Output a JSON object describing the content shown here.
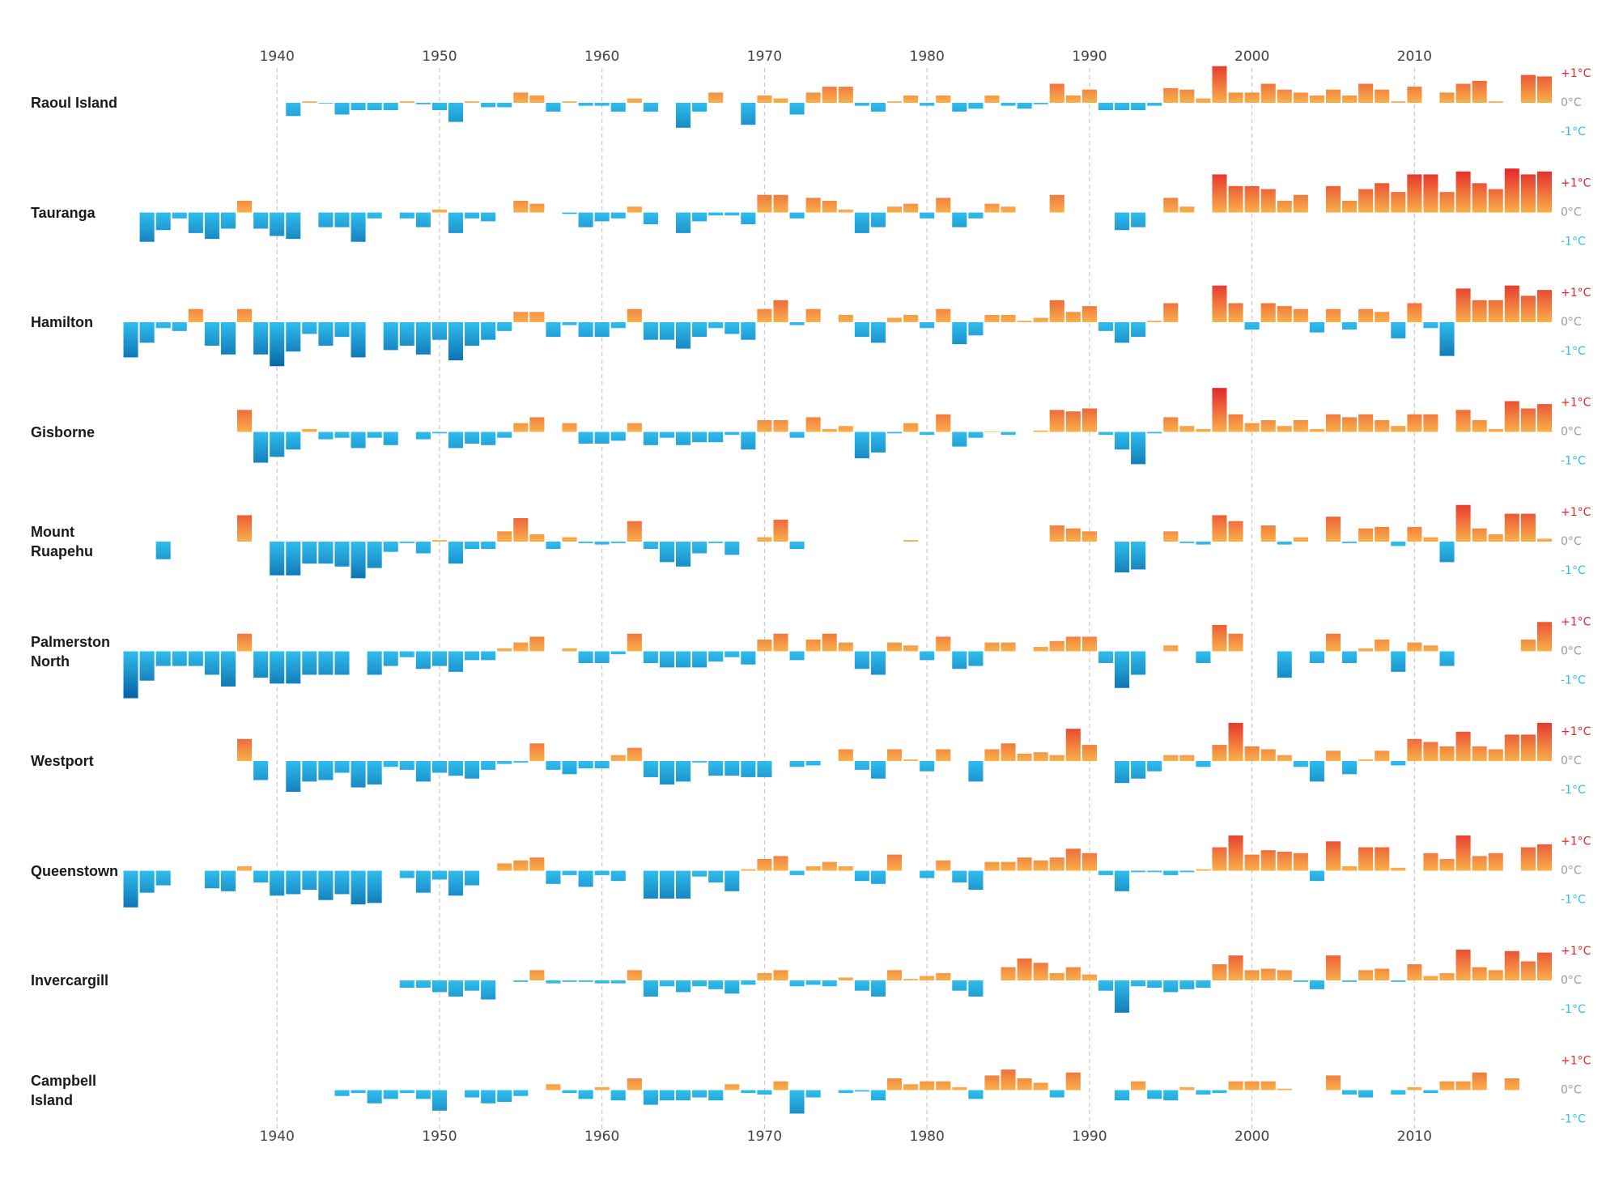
{
  "chart_data": {
    "type": "bar",
    "x": [
      1931,
      1932,
      1933,
      1934,
      1935,
      1936,
      1937,
      1938,
      1939,
      1940,
      1941,
      1942,
      1943,
      1944,
      1945,
      1946,
      1947,
      1948,
      1949,
      1950,
      1951,
      1952,
      1953,
      1954,
      1955,
      1956,
      1957,
      1958,
      1959,
      1960,
      1961,
      1962,
      1963,
      1964,
      1965,
      1966,
      1967,
      1968,
      1969,
      1970,
      1971,
      1972,
      1973,
      1974,
      1975,
      1976,
      1977,
      1978,
      1979,
      1980,
      1981,
      1982,
      1983,
      1984,
      1985,
      1986,
      1987,
      1988,
      1989,
      1990,
      1991,
      1992,
      1993,
      1994,
      1995,
      1996,
      1997,
      1998,
      1999,
      2000,
      2001,
      2002,
      2003,
      2004,
      2005,
      2006,
      2007,
      2008,
      2009,
      2010,
      2011,
      2012,
      2013,
      2014,
      2015,
      2016,
      2017,
      2018
    ],
    "xlim": [
      1930.5,
      2018.5
    ],
    "xticks": [
      1940,
      1950,
      1960,
      1970,
      1980,
      1990,
      2000,
      2010
    ],
    "ylim": [
      -1.85,
      1.85
    ],
    "yticks": [
      {
        "value": 1,
        "label": "+1°C"
      },
      {
        "value": 0,
        "label": "0°C"
      },
      {
        "value": -1,
        "label": "-1°C"
      }
    ],
    "grid": true,
    "colors": {
      "positive": [
        "#f9b04a",
        "#e4262a"
      ],
      "negative": [
        "#2fbdee",
        "#0867a8"
      ]
    },
    "series": [
      {
        "name": "Raoul Island",
        "values": [
          null,
          null,
          null,
          null,
          null,
          null,
          null,
          null,
          null,
          null,
          -0.45,
          0.05,
          -0.02,
          -0.4,
          -0.25,
          -0.25,
          -0.25,
          0.05,
          -0.05,
          -0.25,
          -0.65,
          0.05,
          -0.15,
          -0.15,
          0.35,
          0.25,
          -0.3,
          0.05,
          -0.1,
          -0.1,
          -0.3,
          0.15,
          -0.3,
          null,
          -0.85,
          -0.3,
          0.35,
          null,
          -0.75,
          0.25,
          0.15,
          -0.4,
          0.35,
          0.55,
          0.55,
          -0.1,
          -0.3,
          0.05,
          0.25,
          -0.1,
          0.25,
          -0.3,
          -0.2,
          0.25,
          -0.1,
          -0.2,
          -0.05,
          0.65,
          0.25,
          0.45,
          -0.25,
          -0.25,
          -0.25,
          -0.1,
          0.5,
          0.45,
          0.15,
          1.25,
          0.35,
          0.35,
          0.65,
          0.45,
          0.35,
          0.25,
          0.45,
          0.25,
          0.65,
          0.45,
          0.05,
          0.55,
          null,
          0.35,
          0.65,
          0.75,
          0.05,
          null,
          0.95,
          0.9
        ]
      },
      {
        "name": "Tauranga",
        "values": [
          null,
          -1.0,
          -0.6,
          -0.2,
          -0.7,
          -0.9,
          -0.55,
          0.4,
          -0.55,
          -0.8,
          -0.9,
          null,
          -0.5,
          -0.5,
          -1.0,
          -0.2,
          null,
          -0.2,
          -0.5,
          0.1,
          -0.7,
          -0.2,
          -0.3,
          null,
          0.4,
          0.3,
          null,
          -0.05,
          -0.5,
          -0.3,
          -0.2,
          0.2,
          -0.4,
          null,
          -0.7,
          -0.3,
          -0.1,
          -0.1,
          -0.4,
          0.6,
          0.6,
          -0.2,
          0.5,
          0.4,
          0.1,
          -0.7,
          -0.5,
          0.2,
          0.3,
          -0.2,
          0.5,
          -0.5,
          -0.2,
          0.3,
          0.2,
          null,
          null,
          0.6,
          null,
          null,
          null,
          -0.6,
          -0.5,
          null,
          0.5,
          0.2,
          null,
          1.3,
          0.9,
          0.9,
          0.8,
          0.4,
          0.6,
          null,
          0.9,
          0.4,
          0.8,
          1.0,
          0.7,
          1.3,
          1.3,
          0.7,
          1.4,
          1.0,
          0.8,
          1.5,
          1.3,
          1.4
        ]
      },
      {
        "name": "Hamilton",
        "values": [
          -1.2,
          -0.7,
          -0.2,
          -0.3,
          0.45,
          -0.8,
          -1.1,
          0.45,
          -1.1,
          -1.5,
          -1.0,
          -0.4,
          -0.8,
          -0.5,
          -1.2,
          null,
          -0.95,
          -0.8,
          -1.1,
          -0.6,
          -1.3,
          -0.8,
          -0.6,
          -0.3,
          0.35,
          0.35,
          -0.5,
          -0.1,
          -0.5,
          -0.5,
          -0.2,
          0.45,
          -0.6,
          -0.6,
          -0.9,
          -0.5,
          -0.2,
          -0.4,
          -0.6,
          0.45,
          0.75,
          -0.1,
          0.45,
          null,
          0.25,
          -0.5,
          -0.7,
          0.15,
          0.25,
          -0.2,
          0.45,
          -0.75,
          -0.45,
          0.25,
          0.25,
          0.05,
          0.15,
          0.75,
          0.35,
          0.55,
          -0.3,
          -0.7,
          -0.5,
          0.05,
          0.65,
          null,
          null,
          1.25,
          0.65,
          -0.25,
          0.65,
          0.55,
          0.45,
          -0.35,
          0.45,
          -0.25,
          0.45,
          0.35,
          -0.55,
          0.65,
          -0.2,
          -1.15,
          1.15,
          0.75,
          0.75,
          1.25,
          0.9,
          1.1
        ]
      },
      {
        "name": "Gisborne",
        "values": [
          null,
          null,
          null,
          null,
          null,
          null,
          null,
          0.75,
          -1.05,
          -0.85,
          -0.6,
          0.1,
          -0.25,
          -0.2,
          -0.55,
          -0.2,
          -0.45,
          null,
          -0.25,
          -0.05,
          -0.55,
          -0.4,
          -0.45,
          -0.2,
          0.3,
          0.5,
          null,
          0.3,
          -0.4,
          -0.4,
          -0.3,
          0.3,
          -0.45,
          -0.2,
          -0.45,
          -0.35,
          -0.35,
          -0.1,
          -0.6,
          0.4,
          0.4,
          -0.2,
          0.5,
          0.1,
          0.2,
          -0.9,
          -0.7,
          -0.05,
          0.3,
          -0.1,
          0.6,
          -0.5,
          -0.2,
          0.02,
          -0.1,
          null,
          0.05,
          0.75,
          0.7,
          0.8,
          -0.1,
          -0.6,
          -1.1,
          -0.05,
          0.5,
          0.2,
          0.1,
          1.5,
          0.6,
          0.3,
          0.4,
          0.2,
          0.4,
          0.1,
          0.6,
          0.5,
          0.6,
          0.4,
          0.2,
          0.6,
          0.6,
          null,
          0.75,
          0.4,
          0.1,
          1.05,
          0.8,
          0.95
        ]
      },
      {
        "name": "Mount Ruapehu",
        "values": [
          null,
          null,
          -0.6,
          null,
          null,
          null,
          null,
          0.9,
          null,
          -1.15,
          -1.15,
          -0.75,
          -0.75,
          -0.85,
          -1.25,
          -0.9,
          -0.35,
          -0.05,
          -0.4,
          0.05,
          -0.75,
          -0.25,
          -0.25,
          0.35,
          0.8,
          0.25,
          -0.25,
          0.15,
          -0.05,
          -0.1,
          -0.05,
          0.7,
          -0.25,
          -0.7,
          -0.85,
          -0.4,
          -0.05,
          -0.45,
          null,
          0.15,
          0.75,
          -0.25,
          null,
          null,
          null,
          null,
          null,
          null,
          0.05,
          null,
          null,
          null,
          null,
          null,
          null,
          null,
          null,
          0.55,
          0.45,
          0.35,
          null,
          -1.05,
          -0.95,
          null,
          0.35,
          -0.05,
          -0.1,
          0.9,
          0.7,
          null,
          0.55,
          -0.1,
          0.15,
          null,
          0.85,
          -0.05,
          0.45,
          0.5,
          -0.15,
          0.5,
          0.15,
          -0.7,
          1.25,
          0.45,
          0.25,
          0.95,
          0.95,
          0.1
        ]
      },
      {
        "name": "Palmerston North",
        "values": [
          -1.6,
          -1.0,
          -0.5,
          -0.5,
          -0.5,
          -0.8,
          -1.2,
          0.6,
          -0.9,
          -1.1,
          -1.1,
          -0.8,
          -0.8,
          -0.8,
          null,
          -0.8,
          -0.5,
          -0.2,
          -0.6,
          -0.5,
          -0.7,
          -0.3,
          -0.3,
          0.1,
          0.3,
          0.5,
          null,
          0.1,
          -0.4,
          -0.4,
          -0.1,
          0.6,
          -0.4,
          -0.55,
          -0.55,
          -0.55,
          -0.35,
          -0.2,
          -0.45,
          0.4,
          0.6,
          -0.3,
          0.4,
          0.6,
          0.3,
          -0.6,
          -0.8,
          0.3,
          0.2,
          -0.3,
          0.5,
          -0.6,
          -0.5,
          0.3,
          0.3,
          null,
          0.15,
          0.35,
          0.5,
          0.5,
          -0.4,
          -1.25,
          -0.8,
          null,
          0.2,
          null,
          -0.4,
          0.9,
          0.6,
          null,
          null,
          -0.9,
          null,
          -0.4,
          0.6,
          -0.4,
          0.1,
          0.4,
          -0.7,
          0.3,
          0.2,
          -0.5,
          null,
          null,
          null,
          null,
          0.4,
          1.0
        ]
      },
      {
        "name": "Westport",
        "values": [
          null,
          null,
          null,
          null,
          null,
          null,
          null,
          0.75,
          -0.65,
          null,
          -1.05,
          -0.7,
          -0.65,
          -0.4,
          -0.9,
          -0.8,
          -0.2,
          -0.3,
          -0.7,
          -0.4,
          -0.5,
          -0.6,
          -0.3,
          -0.1,
          -0.05,
          0.6,
          -0.3,
          -0.45,
          -0.25,
          -0.25,
          0.2,
          0.45,
          -0.55,
          -0.8,
          -0.7,
          -0.05,
          -0.5,
          -0.5,
          -0.55,
          -0.55,
          null,
          -0.2,
          -0.15,
          null,
          0.4,
          -0.3,
          -0.6,
          0.4,
          0.05,
          -0.35,
          0.4,
          null,
          -0.7,
          0.4,
          0.6,
          0.25,
          0.3,
          0.2,
          1.1,
          0.55,
          null,
          -0.75,
          -0.6,
          -0.35,
          0.2,
          0.2,
          -0.2,
          0.55,
          1.3,
          0.5,
          0.4,
          0.2,
          -0.2,
          -0.7,
          0.35,
          -0.45,
          0.05,
          0.35,
          -0.15,
          0.75,
          0.65,
          0.5,
          1.0,
          0.5,
          0.4,
          0.9,
          0.9,
          1.3
        ]
      },
      {
        "name": "Queenstown",
        "values": [
          -1.25,
          -0.75,
          -0.5,
          null,
          null,
          -0.6,
          -0.7,
          0.15,
          -0.4,
          -0.85,
          -0.8,
          -0.65,
          -1.0,
          -0.8,
          -1.15,
          -1.1,
          null,
          -0.25,
          -0.75,
          -0.3,
          -0.85,
          -0.5,
          null,
          0.25,
          0.35,
          0.45,
          -0.45,
          -0.15,
          -0.55,
          -0.15,
          -0.35,
          null,
          -0.95,
          -0.95,
          -0.95,
          -0.2,
          -0.4,
          -0.7,
          0.05,
          0.4,
          0.5,
          -0.15,
          0.15,
          0.3,
          0.15,
          -0.35,
          -0.45,
          0.55,
          null,
          -0.25,
          0.35,
          -0.4,
          -0.65,
          0.3,
          0.3,
          0.45,
          0.35,
          0.45,
          0.75,
          0.6,
          -0.15,
          -0.7,
          -0.05,
          -0.05,
          -0.15,
          -0.05,
          0.05,
          0.8,
          1.2,
          0.55,
          0.7,
          0.65,
          0.6,
          -0.35,
          1.0,
          0.15,
          0.8,
          0.8,
          0.1,
          null,
          0.6,
          0.4,
          1.2,
          0.5,
          0.6,
          null,
          0.8,
          0.9
        ]
      },
      {
        "name": "Invercargill",
        "values": [
          null,
          null,
          null,
          null,
          null,
          null,
          null,
          null,
          null,
          null,
          null,
          null,
          null,
          null,
          null,
          null,
          null,
          -0.25,
          -0.25,
          -0.4,
          -0.55,
          -0.35,
          -0.65,
          null,
          -0.05,
          0.35,
          -0.1,
          -0.05,
          -0.05,
          -0.1,
          -0.1,
          0.35,
          -0.55,
          -0.2,
          -0.4,
          -0.2,
          -0.3,
          -0.45,
          -0.15,
          0.25,
          0.35,
          -0.2,
          -0.15,
          -0.2,
          0.1,
          -0.35,
          -0.55,
          0.35,
          0.05,
          0.15,
          0.25,
          -0.35,
          -0.55,
          null,
          0.45,
          0.75,
          0.6,
          0.25,
          0.45,
          0.2,
          -0.35,
          -1.1,
          -0.2,
          -0.25,
          -0.4,
          -0.3,
          -0.25,
          0.55,
          0.85,
          0.35,
          0.4,
          0.35,
          -0.05,
          -0.3,
          0.85,
          -0.05,
          0.35,
          0.4,
          -0.05,
          0.55,
          0.15,
          0.25,
          1.05,
          0.45,
          0.35,
          1.0,
          0.65,
          0.95
        ]
      },
      {
        "name": "Campbell Island",
        "values": [
          null,
          null,
          null,
          null,
          null,
          null,
          null,
          null,
          null,
          null,
          null,
          null,
          null,
          -0.2,
          -0.1,
          -0.45,
          -0.3,
          -0.1,
          -0.3,
          -0.7,
          null,
          -0.25,
          -0.45,
          -0.4,
          -0.2,
          null,
          0.2,
          -0.1,
          -0.3,
          0.1,
          -0.35,
          0.4,
          -0.5,
          -0.35,
          -0.35,
          -0.25,
          -0.35,
          0.2,
          -0.1,
          -0.15,
          0.3,
          -0.8,
          -0.25,
          null,
          -0.1,
          -0.05,
          -0.35,
          0.4,
          0.2,
          0.3,
          0.3,
          0.1,
          -0.3,
          0.5,
          0.7,
          0.4,
          0.25,
          -0.25,
          0.6,
          null,
          null,
          -0.35,
          0.3,
          -0.3,
          -0.35,
          0.1,
          -0.15,
          -0.1,
          0.3,
          0.3,
          0.3,
          0.05,
          null,
          null,
          0.5,
          -0.15,
          -0.25,
          null,
          -0.15,
          0.1,
          -0.1,
          0.3,
          0.3,
          0.6,
          null,
          0.4,
          null,
          null
        ]
      }
    ]
  }
}
